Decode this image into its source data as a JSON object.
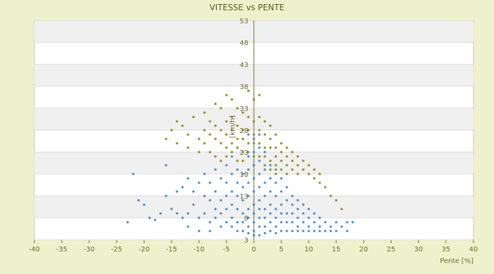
{
  "chart_data": {
    "type": "scatter",
    "title": "VITESSE vs PENTE",
    "xlabel": "Pente [%]",
    "ylabel": "[km/h]",
    "xlim": [
      -40,
      40
    ],
    "ylim": [
      3,
      53
    ],
    "xticks": [
      -40,
      -35,
      -30,
      -25,
      -20,
      -15,
      -10,
      -5,
      0,
      5,
      10,
      15,
      20,
      25,
      30,
      35,
      40
    ],
    "yticks": [
      3,
      8,
      13,
      18,
      23,
      28,
      33,
      38,
      43,
      48,
      53
    ],
    "grid": true,
    "legend": "none",
    "series": [
      {
        "color": "#3b88cc",
        "points": [
          [
            -22,
            18
          ],
          [
            -21,
            12
          ],
          [
            -20,
            11
          ],
          [
            -23,
            7
          ],
          [
            -19,
            8
          ],
          [
            -18,
            7.5
          ],
          [
            -17,
            9
          ],
          [
            -16,
            13
          ],
          [
            -16,
            20
          ],
          [
            -15,
            10
          ],
          [
            -14,
            9
          ],
          [
            -14,
            14
          ],
          [
            -13,
            8
          ],
          [
            -13,
            15
          ],
          [
            -12,
            17
          ],
          [
            -12,
            9
          ],
          [
            -11,
            11
          ],
          [
            -11,
            14
          ],
          [
            -10,
            8
          ],
          [
            -10,
            16
          ],
          [
            -9,
            9
          ],
          [
            -9,
            13
          ],
          [
            -9,
            18
          ],
          [
            -8,
            7
          ],
          [
            -8,
            12
          ],
          [
            -8,
            16
          ],
          [
            -7,
            8
          ],
          [
            -7,
            10
          ],
          [
            -7,
            14
          ],
          [
            -7,
            19
          ],
          [
            -6,
            6
          ],
          [
            -6,
            9
          ],
          [
            -6,
            12
          ],
          [
            -6,
            17
          ],
          [
            -5,
            7
          ],
          [
            -5,
            10
          ],
          [
            -5,
            13
          ],
          [
            -5,
            16
          ],
          [
            -5,
            20
          ],
          [
            -4,
            6
          ],
          [
            -4,
            8
          ],
          [
            -4,
            11
          ],
          [
            -4,
            14
          ],
          [
            -4,
            18
          ],
          [
            -4,
            22
          ],
          [
            -3,
            5
          ],
          [
            -3,
            7
          ],
          [
            -3,
            10
          ],
          [
            -3,
            13
          ],
          [
            -3,
            16
          ],
          [
            -3,
            19
          ],
          [
            -3,
            24
          ],
          [
            -2,
            5
          ],
          [
            -2,
            7
          ],
          [
            -2,
            9
          ],
          [
            -2,
            12
          ],
          [
            -2,
            15
          ],
          [
            -2,
            18
          ],
          [
            -2,
            21
          ],
          [
            -2,
            26
          ],
          [
            -1,
            4.5
          ],
          [
            -1,
            6
          ],
          [
            -1,
            8
          ],
          [
            -1,
            10
          ],
          [
            -1,
            13
          ],
          [
            -1,
            16
          ],
          [
            -1,
            19
          ],
          [
            -1,
            22
          ],
          [
            -1,
            25
          ],
          [
            -1,
            27
          ],
          [
            0,
            4
          ],
          [
            0,
            5
          ],
          [
            0,
            7
          ],
          [
            0,
            9
          ],
          [
            0,
            11
          ],
          [
            0,
            14
          ],
          [
            0,
            17
          ],
          [
            0,
            20
          ],
          [
            0,
            23
          ],
          [
            0,
            26
          ],
          [
            1,
            4
          ],
          [
            1,
            6
          ],
          [
            1,
            8
          ],
          [
            1,
            10
          ],
          [
            1,
            12
          ],
          [
            1,
            15
          ],
          [
            1,
            18
          ],
          [
            1,
            21
          ],
          [
            1,
            24
          ],
          [
            1,
            27
          ],
          [
            2,
            4.5
          ],
          [
            2,
            6
          ],
          [
            2,
            8
          ],
          [
            2,
            10
          ],
          [
            2,
            13
          ],
          [
            2,
            16
          ],
          [
            2,
            19
          ],
          [
            2,
            23
          ],
          [
            3,
            5
          ],
          [
            3,
            7
          ],
          [
            3,
            9
          ],
          [
            3,
            11
          ],
          [
            3,
            14
          ],
          [
            3,
            17
          ],
          [
            3,
            20
          ],
          [
            4,
            4.5
          ],
          [
            4,
            6
          ],
          [
            4,
            8
          ],
          [
            4,
            10
          ],
          [
            4,
            13
          ],
          [
            4,
            16
          ],
          [
            4,
            19
          ],
          [
            5,
            5
          ],
          [
            5,
            7
          ],
          [
            5,
            9
          ],
          [
            5,
            11
          ],
          [
            5,
            14
          ],
          [
            5,
            17
          ],
          [
            6,
            5
          ],
          [
            6,
            7
          ],
          [
            6,
            9
          ],
          [
            6,
            12
          ],
          [
            6,
            15
          ],
          [
            7,
            5
          ],
          [
            7,
            7
          ],
          [
            7,
            9
          ],
          [
            7,
            11
          ],
          [
            7,
            13
          ],
          [
            8,
            5
          ],
          [
            8,
            6
          ],
          [
            8,
            8
          ],
          [
            8,
            10
          ],
          [
            8,
            12
          ],
          [
            9,
            5
          ],
          [
            9,
            7
          ],
          [
            9,
            9
          ],
          [
            9,
            11
          ],
          [
            10,
            5
          ],
          [
            10,
            6
          ],
          [
            10,
            8
          ],
          [
            10,
            10
          ],
          [
            11,
            5
          ],
          [
            11,
            7
          ],
          [
            11,
            9
          ],
          [
            12,
            5
          ],
          [
            12,
            6
          ],
          [
            12,
            8
          ],
          [
            13,
            5
          ],
          [
            13,
            7
          ],
          [
            14,
            6
          ],
          [
            14,
            5
          ],
          [
            15,
            5
          ],
          [
            15,
            7
          ],
          [
            16,
            6
          ],
          [
            17,
            7
          ],
          [
            17,
            5
          ],
          [
            18,
            7
          ],
          [
            -12,
            6
          ],
          [
            -10,
            5
          ],
          [
            -8,
            5
          ]
        ]
      },
      {
        "color": "#8a8a18",
        "points": [
          [
            -16,
            26
          ],
          [
            -15,
            28
          ],
          [
            -14,
            30
          ],
          [
            -14,
            25
          ],
          [
            -13,
            29
          ],
          [
            -12,
            24
          ],
          [
            -12,
            27
          ],
          [
            -11,
            31
          ],
          [
            -10,
            26
          ],
          [
            -10,
            23
          ],
          [
            -9,
            32
          ],
          [
            -9,
            28
          ],
          [
            -9,
            25
          ],
          [
            -8,
            30
          ],
          [
            -8,
            27
          ],
          [
            -8,
            23
          ],
          [
            -7,
            34
          ],
          [
            -7,
            29
          ],
          [
            -7,
            26
          ],
          [
            -7,
            22
          ],
          [
            -6,
            33
          ],
          [
            -6,
            28
          ],
          [
            -6,
            25
          ],
          [
            -6,
            21
          ],
          [
            -5,
            36
          ],
          [
            -5,
            30
          ],
          [
            -5,
            27
          ],
          [
            -5,
            24
          ],
          [
            -5,
            22
          ],
          [
            -4,
            35
          ],
          [
            -4,
            31
          ],
          [
            -4,
            28
          ],
          [
            -4,
            25
          ],
          [
            -4,
            23
          ],
          [
            -3,
            33
          ],
          [
            -3,
            29
          ],
          [
            -3,
            26
          ],
          [
            -3,
            24
          ],
          [
            -3,
            21
          ],
          [
            -2,
            32
          ],
          [
            -2,
            28
          ],
          [
            -2,
            26
          ],
          [
            -2,
            23
          ],
          [
            -2,
            21
          ],
          [
            -1,
            37
          ],
          [
            -1,
            31
          ],
          [
            -1,
            28
          ],
          [
            -1,
            25
          ],
          [
            -1,
            23
          ],
          [
            0,
            35
          ],
          [
            0,
            30
          ],
          [
            0,
            27
          ],
          [
            0,
            25
          ],
          [
            0,
            22
          ],
          [
            1,
            36
          ],
          [
            1,
            31
          ],
          [
            1,
            28
          ],
          [
            1,
            25
          ],
          [
            1,
            22
          ],
          [
            2,
            30
          ],
          [
            2,
            27
          ],
          [
            2,
            24
          ],
          [
            2,
            22
          ],
          [
            2,
            20
          ],
          [
            3,
            29
          ],
          [
            3,
            26
          ],
          [
            3,
            24
          ],
          [
            3,
            21
          ],
          [
            3,
            19
          ],
          [
            4,
            27
          ],
          [
            4,
            24
          ],
          [
            4,
            22
          ],
          [
            4,
            20
          ],
          [
            4,
            18
          ],
          [
            5,
            25
          ],
          [
            5,
            23
          ],
          [
            5,
            21
          ],
          [
            5,
            19
          ],
          [
            6,
            24
          ],
          [
            6,
            22
          ],
          [
            6,
            20
          ],
          [
            6,
            18
          ],
          [
            7,
            23
          ],
          [
            7,
            21
          ],
          [
            7,
            19
          ],
          [
            8,
            22
          ],
          [
            8,
            20
          ],
          [
            8,
            18
          ],
          [
            9,
            21
          ],
          [
            9,
            19
          ],
          [
            10,
            20
          ],
          [
            10,
            18
          ],
          [
            11,
            19
          ],
          [
            11,
            17
          ],
          [
            12,
            18
          ],
          [
            12,
            16
          ],
          [
            13,
            15
          ],
          [
            14,
            13
          ],
          [
            15,
            12
          ],
          [
            16,
            10
          ]
        ]
      }
    ]
  }
}
